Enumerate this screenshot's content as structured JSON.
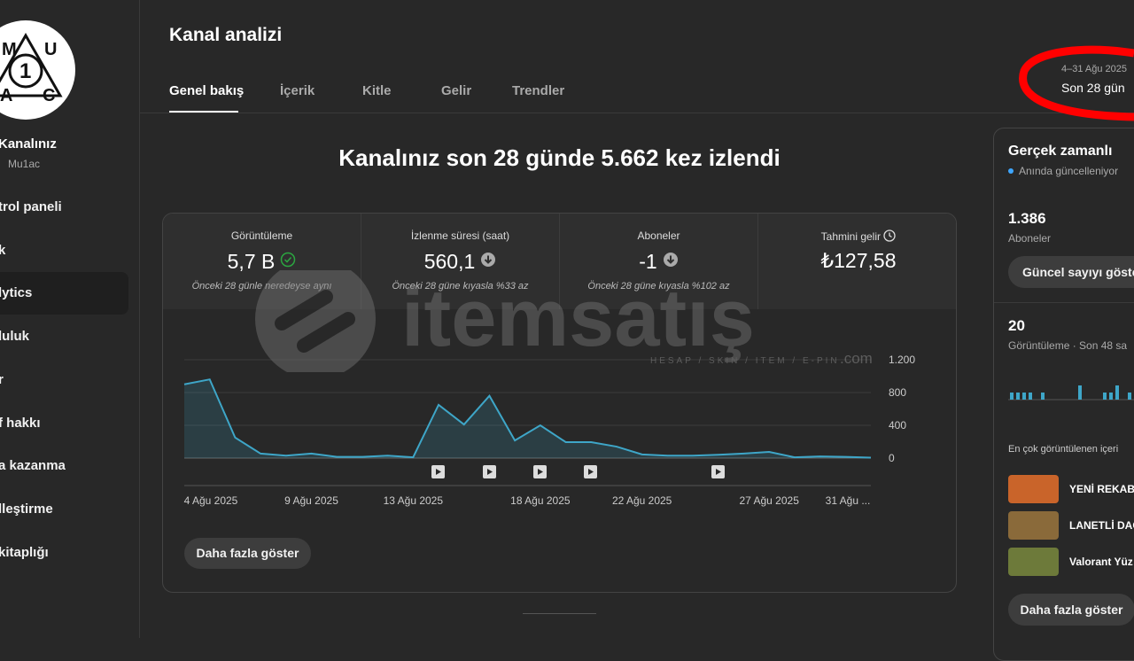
{
  "sidebar": {
    "avatar_letters": [
      "M",
      "U",
      "1",
      "A",
      "C"
    ],
    "channel_title": "Kanalınız",
    "channel_handle": "Mu1ac",
    "items": [
      "trol paneli",
      "k",
      "lytics",
      "luluk",
      "r",
      "f hakkı",
      "a kazanma",
      "lleştirme",
      "kitaplığı"
    ]
  },
  "header": {
    "title": "Kanal analizi",
    "tabs": [
      "Genel bakış",
      "İçerik",
      "Kitle",
      "Gelir",
      "Trendler"
    ],
    "date_range": "4–31 Ağu 2025",
    "period": "Son 28 gün"
  },
  "headline": "Kanalınız son 28 günde 5.662 kez izlendi",
  "metrics": [
    {
      "label": "Görüntüleme",
      "value": "5,7 B",
      "note": "Önceki 28 günle neredeyse aynı"
    },
    {
      "label": "İzlenme süresi (saat)",
      "value": "560,1",
      "note": "Önceki 28 güne kıyasla %33 az"
    },
    {
      "label": "Aboneler",
      "value": "-1",
      "note": "Önceki 28 güne kıyasla %102 az"
    },
    {
      "label": "Tahmini gelir",
      "value": "₺127,58",
      "note": ""
    }
  ],
  "chart_data": {
    "type": "line",
    "categories": [
      "4 Ağu 2025",
      null,
      null,
      null,
      null,
      "9 Ağu 2025",
      null,
      null,
      null,
      "13 Ağu 2025",
      null,
      null,
      null,
      null,
      "18 Ağu 2025",
      null,
      null,
      null,
      "22 Ağu 2025",
      null,
      null,
      null,
      null,
      "27 Ağu 2025",
      null,
      null,
      null,
      "31 Ağu ..."
    ],
    "series": [
      {
        "name": "Görüntüleme",
        "color": "#3ea6c8",
        "values": [
          900,
          960,
          250,
          55,
          30,
          55,
          15,
          15,
          30,
          10,
          650,
          410,
          760,
          215,
          400,
          195,
          195,
          140,
          45,
          30,
          30,
          40,
          55,
          75,
          10,
          20,
          15,
          5
        ]
      }
    ],
    "ylim": [
      0,
      1200
    ],
    "yticks": [
      0,
      400,
      800,
      {
        "value": 1200,
        "label": "1.200"
      }
    ],
    "grid": true
  },
  "more_button": "Daha fazla göster",
  "watermark": {
    "brand": "itemsatış",
    "tagline": "HESAP / SKIN / ITEM / E-PIN",
    "domain": ".com"
  },
  "realtime": {
    "title": "Gerçek zamanlı",
    "status": "Anında güncelleniyor",
    "subscribers": "1.386",
    "subscribers_label": "Aboneler",
    "show_button": "Güncel sayıyı göster",
    "views": "20",
    "views_label": "Görüntüleme · Son 48 sa",
    "bars": [
      1,
      1,
      1,
      1,
      0,
      1,
      0,
      0,
      0,
      0,
      0,
      2,
      0,
      0,
      0,
      1,
      1,
      2,
      0,
      1
    ],
    "top_label": "En çok görüntülenen içeri",
    "videos": [
      "YENİ REKAB",
      "LANETLİ DAC",
      "Valorant Yüz"
    ],
    "more_button": "Daha fazla göster"
  }
}
